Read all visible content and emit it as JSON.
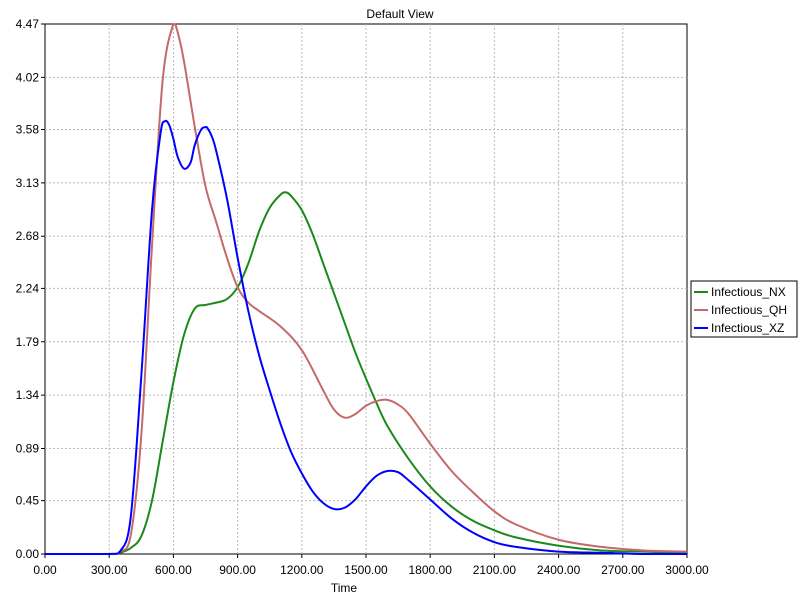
{
  "chart_data": {
    "type": "line",
    "title": "Default View",
    "xlabel": "Time",
    "ylabel": "",
    "xlim": [
      0,
      3000
    ],
    "ylim": [
      0,
      4.47
    ],
    "xticks": [
      0,
      300,
      600,
      900,
      1200,
      1500,
      1800,
      2100,
      2400,
      2700,
      3000
    ],
    "xtick_labels": [
      "0.00",
      "300.00",
      "600.00",
      "900.00",
      "1200.00",
      "1500.00",
      "1800.00",
      "2100.00",
      "2400.00",
      "2700.00",
      "3000.00"
    ],
    "yticks": [
      0,
      0.45,
      0.89,
      1.34,
      1.79,
      2.24,
      2.68,
      3.13,
      3.58,
      4.02,
      4.47
    ],
    "ytick_labels": [
      "0.00",
      "0.45",
      "0.89",
      "1.34",
      "1.79",
      "2.24",
      "2.68",
      "3.13",
      "3.58",
      "4.02",
      "4.47"
    ],
    "grid": true,
    "legend_position": "right",
    "series": [
      {
        "name": "Infectious_NX",
        "color": "#1a8a1a",
        "x": [
          0,
          300,
          350,
          400,
          450,
          500,
          550,
          600,
          650,
          700,
          750,
          800,
          850,
          900,
          950,
          1000,
          1050,
          1100,
          1125,
          1150,
          1200,
          1250,
          1300,
          1350,
          1400,
          1450,
          1500,
          1550,
          1600,
          1700,
          1800,
          1900,
          2000,
          2100,
          2200,
          2400,
          2600,
          2800,
          3000
        ],
        "y": [
          0,
          0,
          0.01,
          0.05,
          0.15,
          0.45,
          0.95,
          1.45,
          1.85,
          2.07,
          2.1,
          2.12,
          2.15,
          2.25,
          2.45,
          2.72,
          2.92,
          3.03,
          3.05,
          3.02,
          2.9,
          2.7,
          2.45,
          2.2,
          1.95,
          1.7,
          1.48,
          1.27,
          1.08,
          0.8,
          0.57,
          0.4,
          0.28,
          0.2,
          0.14,
          0.07,
          0.03,
          0.02,
          0.01
        ]
      },
      {
        "name": "Infectious_QH",
        "color": "#c46a6a",
        "x": [
          0,
          300,
          350,
          400,
          450,
          500,
          550,
          600,
          620,
          650,
          700,
          750,
          800,
          850,
          900,
          950,
          1000,
          1100,
          1200,
          1300,
          1350,
          1400,
          1450,
          1500,
          1550,
          1600,
          1650,
          1700,
          1800,
          1900,
          2000,
          2100,
          2200,
          2400,
          2600,
          2800,
          3000
        ],
        "y": [
          0,
          0,
          0.02,
          0.15,
          1.0,
          2.6,
          4.0,
          4.47,
          4.4,
          4.15,
          3.6,
          3.1,
          2.8,
          2.5,
          2.25,
          2.12,
          2.05,
          1.92,
          1.72,
          1.38,
          1.22,
          1.15,
          1.18,
          1.25,
          1.29,
          1.3,
          1.26,
          1.18,
          0.93,
          0.7,
          0.52,
          0.36,
          0.25,
          0.12,
          0.06,
          0.03,
          0.02
        ]
      },
      {
        "name": "Infectious_XZ",
        "color": "#0000ff",
        "x": [
          0,
          300,
          350,
          400,
          450,
          500,
          540,
          560,
          580,
          600,
          620,
          650,
          680,
          700,
          730,
          750,
          760,
          780,
          800,
          850,
          900,
          950,
          1000,
          1050,
          1100,
          1150,
          1200,
          1250,
          1300,
          1350,
          1400,
          1450,
          1500,
          1550,
          1600,
          1650,
          1700,
          1800,
          1900,
          2000,
          2100,
          2200,
          2400,
          2600,
          2800,
          3000
        ],
        "y": [
          0,
          0,
          0.02,
          0.3,
          1.5,
          2.9,
          3.55,
          3.65,
          3.62,
          3.5,
          3.35,
          3.25,
          3.3,
          3.45,
          3.58,
          3.6,
          3.59,
          3.52,
          3.4,
          3.0,
          2.5,
          2.05,
          1.68,
          1.38,
          1.1,
          0.86,
          0.68,
          0.53,
          0.43,
          0.38,
          0.39,
          0.46,
          0.57,
          0.66,
          0.7,
          0.69,
          0.62,
          0.46,
          0.3,
          0.18,
          0.1,
          0.06,
          0.02,
          0.01,
          0.0,
          0.0
        ]
      }
    ]
  }
}
